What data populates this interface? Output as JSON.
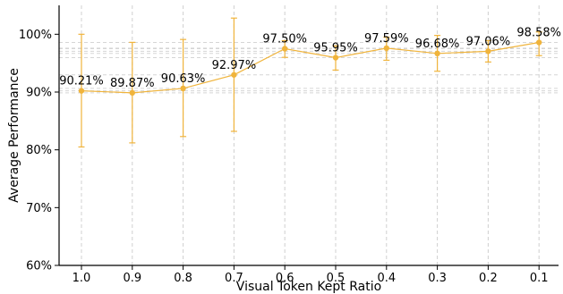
{
  "chart_data": {
    "type": "line",
    "xlabel": "Visual Token Kept Ratio",
    "ylabel": "Average Performance",
    "categories": [
      "1.0",
      "0.9",
      "0.8",
      "0.7",
      "0.6",
      "0.5",
      "0.4",
      "0.3",
      "0.2",
      "0.1"
    ],
    "series": [
      {
        "values": [
          90.21,
          89.87,
          90.63,
          92.97,
          97.5,
          95.95,
          97.59,
          96.68,
          97.06,
          98.58
        ],
        "err_low": [
          80.5,
          81.2,
          82.3,
          83.2,
          96.0,
          93.8,
          95.5,
          93.6,
          95.2,
          96.3
        ],
        "err_high": [
          100.0,
          98.6,
          99.1,
          102.8,
          98.9,
          98.0,
          99.5,
          99.8,
          98.9,
          100.4
        ],
        "labels": [
          "90.21%",
          "89.87%",
          "90.63%",
          "92.97%",
          "97.50%",
          "95.95%",
          "97.59%",
          "96.68%",
          "97.06%",
          "98.58%"
        ],
        "color": "#f0b43c"
      }
    ],
    "reference_lines": [
      90.21,
      89.87,
      90.63,
      92.97,
      97.5,
      95.95,
      97.59,
      96.68,
      97.06,
      98.58
    ],
    "ylim": [
      60,
      105
    ],
    "yticks": [
      60,
      70,
      80,
      90,
      100
    ],
    "ytick_labels": [
      "60%",
      "70%",
      "80%",
      "90%",
      "100%"
    ],
    "grid": "vertical-dashed"
  }
}
